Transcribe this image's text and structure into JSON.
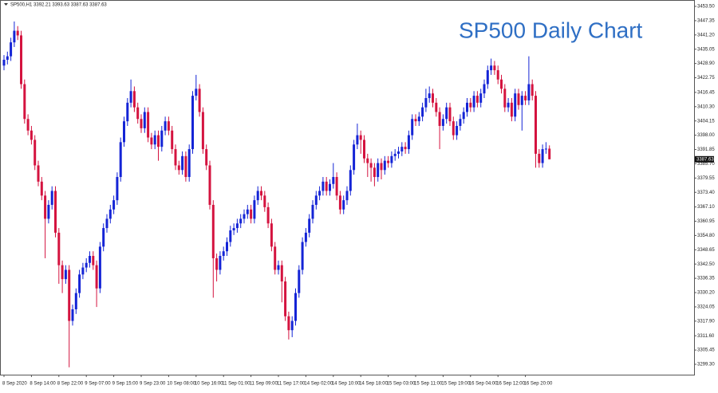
{
  "chart_data": {
    "type": "candlestick",
    "header": "SP500,H1  3392.21 3393.63 3387.63 3387.63",
    "annotation": "SP500 Daily Chart",
    "up_color": "#1424d6",
    "down_color": "#d4133f",
    "ylim": [
      3294.84,
      3456.25
    ],
    "yticks": [
      {
        "value": 3453.5,
        "label": "3453.50"
      },
      3447.35,
      {
        "value": 3441.2,
        "label": "3441.20"
      },
      3435.05,
      {
        "value": 3428.9,
        "label": "3428.90"
      },
      3422.75,
      3416.45,
      {
        "value": 3410.3,
        "label": "3410.30"
      },
      3404.15,
      {
        "value": 3398.0,
        "label": "3398.00"
      },
      3391.85,
      {
        "value": 3385.7,
        "label": "3385.70"
      },
      3379.55,
      {
        "value": 3373.4,
        "label": "3373.40"
      },
      {
        "value": 3367.1,
        "label": "3367.10"
      },
      3360.95,
      {
        "value": 3354.8,
        "label": "3354.80"
      },
      3348.65,
      {
        "value": 3342.5,
        "label": "3342.50"
      },
      3336.35,
      {
        "value": 3330.2,
        "label": "3330.20"
      },
      3324.05,
      {
        "value": 3317.9,
        "label": "3317.90"
      },
      {
        "value": 3311.6,
        "label": "3311.60"
      },
      3305.45,
      {
        "value": 3299.3,
        "label": "3299.30"
      }
    ],
    "x": [
      "8 Sep 2020",
      null,
      null,
      null,
      null,
      null,
      null,
      null,
      "8 Sep 14:00",
      null,
      null,
      null,
      null,
      null,
      null,
      null,
      "8 Sep 22:00",
      null,
      null,
      null,
      null,
      null,
      null,
      null,
      "9 Sep 07:00",
      null,
      null,
      null,
      null,
      null,
      null,
      null,
      "9 Sep 15:00",
      null,
      null,
      null,
      null,
      null,
      null,
      null,
      "9 Sep 23:00",
      null,
      null,
      null,
      null,
      null,
      null,
      null,
      "10 Sep 08:00",
      null,
      null,
      null,
      null,
      null,
      null,
      null,
      "10 Sep 16:00",
      null,
      null,
      null,
      null,
      null,
      null,
      null,
      "11 Sep 01:00",
      null,
      null,
      null,
      null,
      null,
      null,
      null,
      "11 Sep 09:00",
      null,
      null,
      null,
      null,
      null,
      null,
      null,
      "11 Sep 17:00",
      null,
      null,
      null,
      null,
      null,
      null,
      null,
      "14 Sep 02:00",
      null,
      null,
      null,
      null,
      null,
      null,
      null,
      "14 Sep 10:00",
      null,
      null,
      null,
      null,
      null,
      null,
      null,
      "14 Sep 18:00",
      null,
      null,
      null,
      null,
      null,
      null,
      null,
      "15 Sep 03:00",
      null,
      null,
      null,
      null,
      null,
      null,
      null,
      "15 Sep 11:00",
      null,
      null,
      null,
      null,
      null,
      null,
      null,
      "15 Sep 19:00",
      null,
      null,
      null,
      null,
      null,
      null,
      null,
      "16 Sep 04:00",
      null,
      null,
      null,
      null,
      null,
      null,
      null,
      "16 Sep 12:00",
      null,
      null,
      null,
      null,
      null,
      null,
      null,
      "16 Sep 20:00",
      null,
      null,
      null,
      null,
      null,
      null,
      null
    ],
    "open": [
      3428,
      3430.5,
      3432,
      3438,
      3443,
      3441,
      3420,
      3405,
      3400,
      3396,
      3385,
      3378,
      3372,
      3362,
      3368,
      3374,
      3356,
      3342,
      3336,
      3340,
      3318,
      3323,
      3330,
      3338,
      3341,
      3343,
      3346,
      3342,
      3332,
      3350,
      3358,
      3362,
      3366,
      3370,
      3380,
      3395,
      3404,
      3412,
      3417,
      3410,
      3405,
      3401,
      3408,
      3397,
      3394,
      3398,
      3393,
      3400,
      3404,
      3400,
      3392,
      3385,
      3383,
      3389,
      3380,
      3392,
      3415,
      3418,
      3408,
      3392,
      3385,
      3368,
      3345,
      3340,
      3346,
      3348,
      3352,
      3357,
      3358,
      3360,
      3362,
      3364,
      3366,
      3362,
      3370,
      3374,
      3372,
      3367,
      3360,
      3350,
      3340,
      3342,
      3335,
      3320,
      3314,
      3318,
      3330,
      3340,
      3352,
      3356,
      3362,
      3368,
      3372,
      3374,
      3378,
      3374,
      3377,
      3380,
      3372,
      3366,
      3370,
      3374,
      3383,
      3394,
      3398,
      3396,
      3388,
      3386,
      3384,
      3380,
      3386,
      3383,
      3387,
      3386,
      3389,
      3390,
      3391,
      3393,
      3392,
      3398,
      3405,
      3404,
      3406,
      3410,
      3414,
      3416,
      3412,
      3408,
      3402,
      3405,
      3410,
      3404,
      3398,
      3402,
      3405,
      3408,
      3412,
      3410,
      3415,
      3412,
      3416,
      3420,
      3426,
      3428,
      3426,
      3422,
      3418,
      3410,
      3412,
      3406,
      3416,
      3411,
      3415,
      3413,
      3420,
      3415,
      3390,
      3386,
      3392,
      3392.21
    ],
    "high": [
      3432.5,
      3434,
      3440,
      3447,
      3445,
      3443,
      3422,
      3407,
      3402,
      3398,
      3387,
      3380,
      3374,
      3370,
      3376,
      3376,
      3358,
      3344,
      3342,
      3342,
      3325,
      3332,
      3340,
      3343,
      3345,
      3348,
      3348,
      3344,
      3352,
      3360,
      3364,
      3368,
      3372,
      3382,
      3397,
      3406,
      3414,
      3422,
      3419,
      3412,
      3407,
      3410,
      3410,
      3399,
      3400,
      3400,
      3402,
      3406,
      3406,
      3402,
      3394,
      3387,
      3391,
      3391,
      3394,
      3417,
      3424,
      3420,
      3410,
      3394,
      3387,
      3370,
      3347,
      3348,
      3350,
      3354,
      3359,
      3360,
      3362,
      3364,
      3366,
      3368,
      3368,
      3372,
      3376,
      3376,
      3374,
      3369,
      3362,
      3352,
      3344,
      3344,
      3337,
      3322,
      3320,
      3332,
      3342,
      3354,
      3358,
      3364,
      3370,
      3374,
      3376,
      3380,
      3380,
      3379,
      3386,
      3382,
      3374,
      3372,
      3376,
      3385,
      3396,
      3403,
      3400,
      3398,
      3390,
      3388,
      3386,
      3388,
      3388,
      3389,
      3389,
      3391,
      3392,
      3393,
      3395,
      3395,
      3400,
      3407,
      3407,
      3408,
      3412,
      3418,
      3419,
      3418,
      3414,
      3410,
      3407,
      3412,
      3412,
      3406,
      3404,
      3407,
      3410,
      3414,
      3414,
      3417,
      3417,
      3418,
      3422,
      3428,
      3431,
      3430,
      3428,
      3424,
      3420,
      3414,
      3414,
      3418,
      3418,
      3417,
      3417,
      3432,
      3422,
      3417,
      3392,
      3394,
      3395,
      3393.63
    ],
    "low": [
      3426,
      3428.5,
      3430,
      3436,
      3439,
      3418,
      3403,
      3398,
      3394,
      3383,
      3376,
      3370,
      3345,
      3360,
      3366,
      3354,
      3334,
      3330,
      3334,
      3298,
      3316,
      3321,
      3328,
      3336,
      3339,
      3341,
      3340,
      3324,
      3330,
      3348,
      3356,
      3360,
      3364,
      3368,
      3378,
      3393,
      3402,
      3410,
      3408,
      3403,
      3399,
      3399,
      3395,
      3392,
      3392,
      3387,
      3391,
      3398,
      3398,
      3390,
      3383,
      3381,
      3381,
      3378,
      3378,
      3390,
      3413,
      3406,
      3390,
      3383,
      3366,
      3328,
      3335,
      3338,
      3344,
      3346,
      3350,
      3355,
      3356,
      3358,
      3360,
      3362,
      3360,
      3360,
      3368,
      3370,
      3365,
      3358,
      3348,
      3338,
      3338,
      3326,
      3318,
      3310,
      3311,
      3316,
      3328,
      3338,
      3350,
      3354,
      3360,
      3366,
      3370,
      3372,
      3372,
      3372,
      3375,
      3370,
      3364,
      3364,
      3368,
      3372,
      3381,
      3392,
      3390,
      3386,
      3380,
      3378,
      3376,
      3378,
      3379,
      3381,
      3384,
      3384,
      3387,
      3388,
      3389,
      3390,
      3390,
      3396,
      3402,
      3402,
      3404,
      3408,
      3412,
      3410,
      3406,
      3392,
      3400,
      3403,
      3402,
      3396,
      3396,
      3400,
      3403,
      3406,
      3408,
      3408,
      3410,
      3410,
      3414,
      3418,
      3424,
      3424,
      3420,
      3416,
      3408,
      3408,
      3404,
      3404,
      3409,
      3400,
      3411,
      3411,
      3413,
      3384,
      3384,
      3384,
      3390,
      3387.63
    ],
    "close": [
      3430.5,
      3432,
      3438,
      3443,
      3441,
      3420,
      3405,
      3400,
      3396,
      3385,
      3378,
      3372,
      3362,
      3368,
      3374,
      3356,
      3342,
      3336,
      3340,
      3318,
      3323,
      3330,
      3338,
      3341,
      3343,
      3346,
      3342,
      3332,
      3350,
      3358,
      3362,
      3366,
      3370,
      3380,
      3395,
      3404,
      3412,
      3417,
      3410,
      3405,
      3401,
      3408,
      3397,
      3394,
      3398,
      3393,
      3400,
      3404,
      3400,
      3392,
      3385,
      3383,
      3389,
      3380,
      3392,
      3415,
      3418,
      3408,
      3392,
      3385,
      3368,
      3345,
      3340,
      3346,
      3348,
      3352,
      3357,
      3358,
      3360,
      3362,
      3364,
      3366,
      3362,
      3370,
      3374,
      3372,
      3367,
      3360,
      3350,
      3340,
      3342,
      3335,
      3320,
      3314,
      3318,
      3330,
      3340,
      3352,
      3356,
      3362,
      3368,
      3372,
      3374,
      3378,
      3374,
      3377,
      3380,
      3372,
      3366,
      3370,
      3374,
      3383,
      3394,
      3398,
      3396,
      3388,
      3386,
      3384,
      3380,
      3386,
      3383,
      3387,
      3386,
      3389,
      3390,
      3391,
      3393,
      3392,
      3398,
      3405,
      3404,
      3406,
      3410,
      3414,
      3416,
      3412,
      3408,
      3402,
      3405,
      3410,
      3404,
      3398,
      3402,
      3405,
      3408,
      3412,
      3410,
      3415,
      3412,
      3416,
      3420,
      3426,
      3428,
      3426,
      3422,
      3418,
      3410,
      3412,
      3406,
      3416,
      3411,
      3415,
      3413,
      3420,
      3415,
      3390,
      3386,
      3392,
      3392.21,
      3387.63
    ]
  }
}
